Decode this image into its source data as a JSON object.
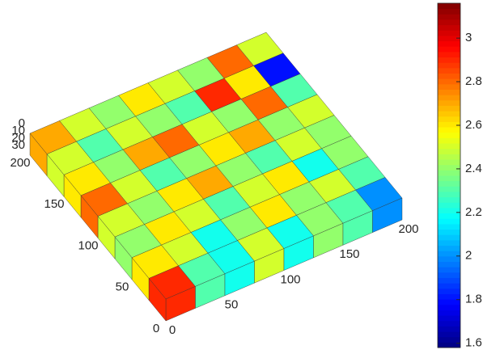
{
  "chart_data": {
    "type": "surface3d",
    "xlim": [
      0,
      200
    ],
    "ylim": [
      0,
      200
    ],
    "zlim": [
      0,
      30
    ],
    "xticks": [
      0,
      50,
      100,
      150,
      200
    ],
    "yticks": [
      0,
      50,
      100,
      150,
      200
    ],
    "zticks": [
      0,
      10,
      20,
      30
    ],
    "values": [
      [
        2.9,
        2.3,
        2.2,
        2.5,
        2.2,
        2.4,
        2.3,
        2.0
      ],
      [
        2.6,
        2.5,
        2.2,
        2.4,
        2.6,
        2.4,
        2.5,
        2.3
      ],
      [
        2.4,
        2.6,
        2.5,
        2.3,
        2.5,
        2.6,
        2.2,
        2.4
      ],
      [
        2.5,
        2.4,
        2.6,
        2.7,
        2.4,
        2.3,
        2.5,
        2.4
      ],
      [
        2.8,
        2.5,
        2.3,
        2.4,
        2.6,
        2.7,
        2.4,
        2.5
      ],
      [
        2.6,
        2.4,
        2.7,
        2.8,
        2.5,
        2.4,
        2.8,
        2.3
      ],
      [
        2.5,
        2.3,
        2.5,
        2.4,
        2.3,
        2.9,
        2.6,
        1.8
      ],
      [
        2.7,
        2.5,
        2.4,
        2.6,
        2.5,
        2.4,
        2.8,
        2.5
      ]
    ],
    "colormap": "jet",
    "clim": [
      1.58,
      3.16
    ],
    "cticks": [
      1.6,
      1.8,
      2,
      2.2,
      2.4,
      2.6,
      2.8,
      3
    ]
  }
}
